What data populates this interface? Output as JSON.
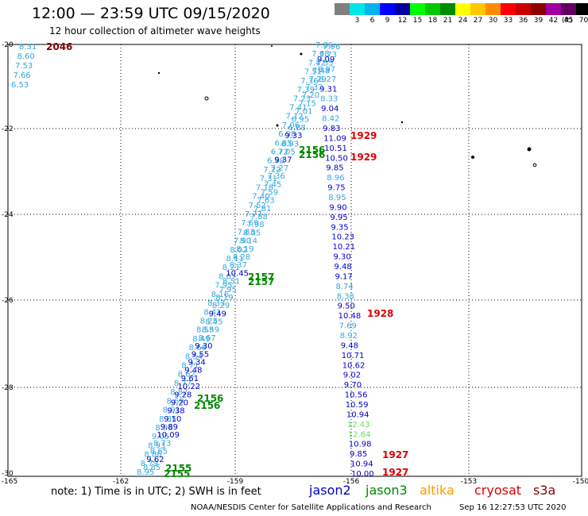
{
  "header": {
    "title": "12:00 — 23:59 UTC 09/15/2020",
    "subtitle": "12 hour collection of altimeter wave heights"
  },
  "legend": {
    "unit": "(ft)",
    "items": [
      {
        "color": "#808080",
        "label": ""
      },
      {
        "color": "#00e6e6",
        "label": "3"
      },
      {
        "color": "#00b4f0",
        "label": "6"
      },
      {
        "color": "#0000ff",
        "label": "9"
      },
      {
        "color": "#0000a0",
        "label": "12"
      },
      {
        "color": "#00ff00",
        "label": "15"
      },
      {
        "color": "#00c800",
        "label": "18"
      },
      {
        "color": "#008c00",
        "label": "21"
      },
      {
        "color": "#ffff00",
        "label": "24"
      },
      {
        "color": "#ffc800",
        "label": "27"
      },
      {
        "color": "#ff8c00",
        "label": "30"
      },
      {
        "color": "#ff0000",
        "label": "33"
      },
      {
        "color": "#c80000",
        "label": "36"
      },
      {
        "color": "#8c0000",
        "label": "39"
      },
      {
        "color": "#a000a0",
        "label": "42"
      },
      {
        "color": "#600060",
        "label": "45"
      },
      {
        "color": "#000000",
        "label": "70"
      }
    ]
  },
  "axes": {
    "lat_labels": [
      "-20",
      "-22",
      "-24",
      "-26",
      "-28",
      "-30"
    ],
    "lon_labels": [
      "-165",
      "-162",
      "-159",
      "-156",
      "-153",
      "-150"
    ]
  },
  "colors": {
    "light_blue": "#33a8e0",
    "dark_blue": "#0000cc",
    "green_pt": "#008800",
    "red_pt": "#dd0000",
    "dark_red": "#880000",
    "light_green": "#66dd66"
  },
  "tracks": {
    "right": [
      {
        "v": "9.09",
        "c": "dark_blue"
      },
      {
        "v": "8.97",
        "c": "light_blue"
      },
      {
        "v": "8.27",
        "c": "light_blue"
      },
      {
        "v": "9.31",
        "c": "dark_blue"
      },
      {
        "v": "8.33",
        "c": "light_blue"
      },
      {
        "v": "9.04",
        "c": "dark_blue"
      },
      {
        "v": "8.42",
        "c": "light_blue"
      },
      {
        "v": "9.83",
        "c": "dark_blue"
      },
      {
        "v": "11.09",
        "c": "dark_blue"
      },
      {
        "v": "10.51",
        "c": "dark_blue"
      },
      {
        "v": "10.50",
        "c": "dark_blue"
      },
      {
        "v": "9.85",
        "c": "dark_blue"
      },
      {
        "v": "8.96",
        "c": "light_blue"
      },
      {
        "v": "9.75",
        "c": "dark_blue"
      },
      {
        "v": "8.95",
        "c": "light_blue"
      },
      {
        "v": "9.90",
        "c": "dark_blue"
      },
      {
        "v": "9.95",
        "c": "dark_blue"
      },
      {
        "v": "9.35",
        "c": "dark_blue"
      },
      {
        "v": "10.23",
        "c": "dark_blue"
      },
      {
        "v": "10.21",
        "c": "dark_blue"
      },
      {
        "v": "9.30",
        "c": "dark_blue"
      },
      {
        "v": "9.48",
        "c": "dark_blue"
      },
      {
        "v": "9.17",
        "c": "dark_blue"
      },
      {
        "v": "8.74",
        "c": "light_blue"
      },
      {
        "v": "8.38",
        "c": "light_blue"
      },
      {
        "v": "9.50",
        "c": "dark_blue"
      },
      {
        "v": "10.48",
        "c": "dark_blue"
      },
      {
        "v": "7.69",
        "c": "light_blue"
      },
      {
        "v": "8.92",
        "c": "light_blue"
      },
      {
        "v": "9.48",
        "c": "dark_blue"
      },
      {
        "v": "10.71",
        "c": "dark_blue"
      },
      {
        "v": "10.62",
        "c": "dark_blue"
      },
      {
        "v": "9.02",
        "c": "dark_blue"
      },
      {
        "v": "9.70",
        "c": "dark_blue"
      },
      {
        "v": "10.56",
        "c": "dark_blue"
      },
      {
        "v": "10.59",
        "c": "dark_blue"
      },
      {
        "v": "10.94",
        "c": "dark_blue"
      },
      {
        "v": "12.43",
        "c": "light_green"
      },
      {
        "v": "12.64",
        "c": "light_green"
      },
      {
        "v": "10.98",
        "c": "dark_blue"
      },
      {
        "v": "9.85",
        "c": "dark_blue"
      },
      {
        "v": "10.94",
        "c": "dark_blue"
      },
      {
        "v": "10.00",
        "c": "dark_blue"
      }
    ],
    "corner": [
      {
        "v": "8.31",
        "c": "light_blue"
      },
      {
        "v": "8.60",
        "c": "light_blue"
      },
      {
        "v": "7.53",
        "c": "light_blue"
      },
      {
        "v": "7.66",
        "c": "light_blue"
      },
      {
        "v": "6.53",
        "c": "light_blue"
      }
    ],
    "diag_a": [
      {
        "v": "7.86",
        "c": "light_blue"
      },
      {
        "v": "7.68",
        "c": "light_blue"
      },
      {
        "v": "7.42",
        "c": "light_blue"
      },
      {
        "v": "7.51",
        "c": "light_blue"
      },
      {
        "v": "7.36",
        "c": "light_blue"
      },
      {
        "v": "7.39",
        "c": "light_blue"
      },
      {
        "v": "7.23",
        "c": "light_blue"
      },
      {
        "v": "7.41",
        "c": "light_blue"
      },
      {
        "v": "7.12",
        "c": "light_blue"
      },
      {
        "v": "7.06",
        "c": "light_blue"
      },
      {
        "v": "6.98",
        "c": "light_blue"
      },
      {
        "v": "6.85",
        "c": "light_blue"
      },
      {
        "v": "6.72",
        "c": "light_blue"
      },
      {
        "v": "6.99",
        "c": "light_blue"
      },
      {
        "v": "7.22",
        "c": "light_blue"
      },
      {
        "v": "7.31",
        "c": "light_blue"
      },
      {
        "v": "7.18",
        "c": "light_blue"
      },
      {
        "v": "7.40",
        "c": "light_blue"
      },
      {
        "v": "7.52",
        "c": "light_blue"
      },
      {
        "v": "7.77",
        "c": "light_blue"
      },
      {
        "v": "7.69",
        "c": "light_blue"
      },
      {
        "v": "7.83",
        "c": "light_blue"
      },
      {
        "v": "7.90",
        "c": "light_blue"
      },
      {
        "v": "8.02",
        "c": "light_blue"
      },
      {
        "v": "8.11",
        "c": "light_blue"
      },
      {
        "v": "8.21",
        "c": "light_blue"
      },
      {
        "v": "8.07",
        "c": "light_blue"
      },
      {
        "v": "7.95",
        "c": "light_blue"
      },
      {
        "v": "8.16",
        "c": "light_blue"
      },
      {
        "v": "8.33",
        "c": "light_blue"
      },
      {
        "v": "8.41",
        "c": "light_blue"
      },
      {
        "v": "8.25",
        "c": "light_blue"
      },
      {
        "v": "8.58",
        "c": "light_blue"
      },
      {
        "v": "8.49",
        "c": "light_blue"
      },
      {
        "v": "8.66",
        "c": "light_blue"
      },
      {
        "v": "8.54",
        "c": "light_blue"
      },
      {
        "v": "8.71",
        "c": "light_blue"
      },
      {
        "v": "8.62",
        "c": "light_blue"
      },
      {
        "v": "8.77",
        "c": "light_blue"
      },
      {
        "v": "8.82",
        "c": "light_blue"
      },
      {
        "v": "8.69",
        "c": "light_blue"
      },
      {
        "v": "8.91",
        "c": "light_blue"
      },
      {
        "v": "8.85",
        "c": "light_blue"
      },
      {
        "v": "8.98",
        "c": "light_blue"
      },
      {
        "v": "9.05",
        "c": "light_blue"
      },
      {
        "v": "8.93",
        "c": "light_blue"
      },
      {
        "v": "8.86",
        "c": "light_blue"
      },
      {
        "v": "8.79",
        "c": "light_blue"
      },
      {
        "v": "8.95",
        "c": "light_blue"
      }
    ],
    "diag_b": [
      {
        "v": "7.96",
        "c": "light_blue"
      },
      {
        "v": "7.73",
        "c": "light_blue"
      },
      {
        "v": "7.55",
        "c": "light_blue"
      },
      {
        "v": "7.48",
        "c": "light_blue"
      },
      {
        "v": "7.29",
        "c": "light_blue"
      },
      {
        "v": "7.33",
        "c": "light_blue"
      },
      {
        "v": "7.20",
        "c": "light_blue"
      },
      {
        "v": "7.15",
        "c": "light_blue"
      },
      {
        "v": "7.01",
        "c": "light_blue"
      },
      {
        "v": "6.95",
        "c": "light_blue"
      },
      {
        "v": "6.88",
        "c": "light_blue"
      },
      {
        "v": "9.33",
        "c": "dark_blue"
      },
      {
        "v": "6.93",
        "c": "light_blue"
      },
      {
        "v": "7.05",
        "c": "light_blue"
      },
      {
        "v": "9.37",
        "c": "dark_blue"
      },
      {
        "v": "7.27",
        "c": "light_blue"
      },
      {
        "v": "7.36",
        "c": "light_blue"
      },
      {
        "v": "7.45",
        "c": "light_blue"
      },
      {
        "v": "7.59",
        "c": "light_blue"
      },
      {
        "v": "7.63",
        "c": "light_blue"
      },
      {
        "v": "7.81",
        "c": "light_blue"
      },
      {
        "v": "7.88",
        "c": "light_blue"
      },
      {
        "v": "7.98",
        "c": "light_blue"
      },
      {
        "v": "8.05",
        "c": "light_blue"
      },
      {
        "v": "8.14",
        "c": "light_blue"
      },
      {
        "v": "8.19",
        "c": "light_blue"
      },
      {
        "v": "8.28",
        "c": "light_blue"
      },
      {
        "v": "8.37",
        "c": "light_blue"
      },
      {
        "v": "10.45",
        "c": "dark_blue"
      },
      {
        "v": "8.51",
        "c": "light_blue"
      },
      {
        "v": "7.95",
        "c": "light_blue"
      },
      {
        "v": "8.19",
        "c": "light_blue"
      },
      {
        "v": "8.29",
        "c": "light_blue"
      },
      {
        "v": "9.49",
        "c": "dark_blue"
      },
      {
        "v": "8.45",
        "c": "light_blue"
      },
      {
        "v": "8.59",
        "c": "light_blue"
      },
      {
        "v": "8.67",
        "c": "light_blue"
      },
      {
        "v": "9.30",
        "c": "dark_blue"
      },
      {
        "v": "9.55",
        "c": "dark_blue"
      },
      {
        "v": "9.34",
        "c": "dark_blue"
      },
      {
        "v": "9.48",
        "c": "dark_blue"
      },
      {
        "v": "9.61",
        "c": "dark_blue"
      },
      {
        "v": "10.22",
        "c": "dark_blue"
      },
      {
        "v": "9.28",
        "c": "dark_blue"
      },
      {
        "v": "9.20",
        "c": "dark_blue"
      },
      {
        "v": "9.38",
        "c": "dark_blue"
      },
      {
        "v": "9.10",
        "c": "dark_blue"
      },
      {
        "v": "9.89",
        "c": "dark_blue"
      },
      {
        "v": "10.09",
        "c": "dark_blue"
      },
      {
        "v": "8.73",
        "c": "light_blue"
      },
      {
        "v": "8.65",
        "c": "light_blue"
      },
      {
        "v": "9.62",
        "c": "dark_blue"
      },
      {
        "v": "8.85",
        "c": "light_blue"
      }
    ]
  },
  "pass_times": [
    {
      "t": "2046",
      "c": "dark_red"
    },
    {
      "t": "1929",
      "c": "red_pt"
    },
    {
      "t": "2156",
      "c": "green_pt"
    },
    {
      "t": "2156",
      "c": "green_pt"
    },
    {
      "t": "1929",
      "c": "red_pt"
    },
    {
      "t": "2157",
      "c": "green_pt"
    },
    {
      "t": "2157",
      "c": "green_pt"
    },
    {
      "t": "1928",
      "c": "red_pt"
    },
    {
      "t": "2156",
      "c": "green_pt"
    },
    {
      "t": "2156",
      "c": "green_pt"
    },
    {
      "t": "1927",
      "c": "red_pt"
    },
    {
      "t": "2155",
      "c": "green_pt"
    },
    {
      "t": "2155",
      "c": "green_pt"
    },
    {
      "t": "1927",
      "c": "red_pt"
    }
  ],
  "footer": {
    "note": "note: 1) Time is in UTC; 2) SWH is in feet",
    "satellites": [
      {
        "name": "jason2",
        "color": "#0000cc"
      },
      {
        "name": "jason3",
        "color": "#008800"
      },
      {
        "name": "altika",
        "color": "#ff9900"
      },
      {
        "name": "cryosat",
        "color": "#dd0000"
      },
      {
        "name": "s3a",
        "color": "#880000"
      }
    ],
    "credit": "NOAA/NESDIS Center for Satellite Applications and Research",
    "timestamp": "Sep 16 12:27:53 UTC 2020"
  }
}
